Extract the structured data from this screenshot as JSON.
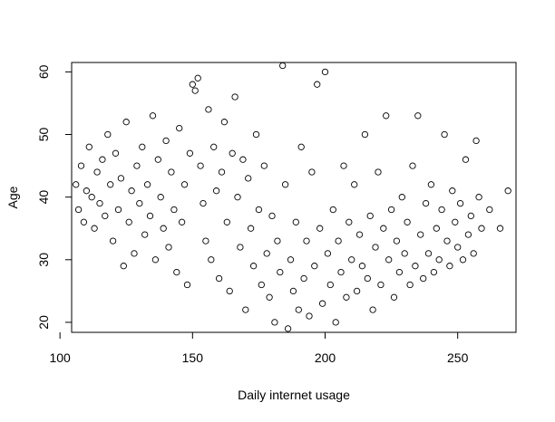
{
  "chart_data": {
    "type": "scatter",
    "title": "",
    "xlabel": "Daily internet usage",
    "ylabel": "Age",
    "xlim": [
      104.4,
      272.0
    ],
    "ylim": [
      18.4,
      61.5
    ],
    "xticks": [
      100,
      150,
      200,
      250
    ],
    "yticks": [
      20,
      30,
      40,
      50,
      60
    ],
    "marker": "open-circle",
    "grid": false,
    "series": [
      {
        "points": [
          [
            106,
            42
          ],
          [
            107,
            38
          ],
          [
            108,
            45
          ],
          [
            109,
            36
          ],
          [
            110,
            41
          ],
          [
            111,
            48
          ],
          [
            112,
            40
          ],
          [
            113,
            35
          ],
          [
            114,
            44
          ],
          [
            115,
            39
          ],
          [
            116,
            46
          ],
          [
            117,
            37
          ],
          [
            118,
            50
          ],
          [
            119,
            42
          ],
          [
            120,
            33
          ],
          [
            121,
            47
          ],
          [
            122,
            38
          ],
          [
            123,
            43
          ],
          [
            124,
            29
          ],
          [
            125,
            52
          ],
          [
            126,
            36
          ],
          [
            127,
            41
          ],
          [
            128,
            31
          ],
          [
            129,
            45
          ],
          [
            130,
            39
          ],
          [
            131,
            48
          ],
          [
            132,
            34
          ],
          [
            133,
            42
          ],
          [
            134,
            37
          ],
          [
            135,
            53
          ],
          [
            136,
            30
          ],
          [
            137,
            46
          ],
          [
            138,
            40
          ],
          [
            139,
            35
          ],
          [
            140,
            49
          ],
          [
            141,
            32
          ],
          [
            142,
            44
          ],
          [
            143,
            38
          ],
          [
            144,
            28
          ],
          [
            145,
            51
          ],
          [
            146,
            36
          ],
          [
            147,
            42
          ],
          [
            148,
            26
          ],
          [
            149,
            47
          ],
          [
            150,
            58
          ],
          [
            151,
            57
          ],
          [
            152,
            59
          ],
          [
            153,
            45
          ],
          [
            154,
            39
          ],
          [
            155,
            33
          ],
          [
            156,
            54
          ],
          [
            157,
            30
          ],
          [
            158,
            48
          ],
          [
            159,
            41
          ],
          [
            160,
            27
          ],
          [
            161,
            44
          ],
          [
            162,
            52
          ],
          [
            163,
            36
          ],
          [
            164,
            25
          ],
          [
            165,
            47
          ],
          [
            166,
            56
          ],
          [
            167,
            40
          ],
          [
            168,
            32
          ],
          [
            169,
            46
          ],
          [
            170,
            22
          ],
          [
            171,
            43
          ],
          [
            172,
            35
          ],
          [
            173,
            29
          ],
          [
            174,
            50
          ],
          [
            175,
            38
          ],
          [
            176,
            26
          ],
          [
            177,
            45
          ],
          [
            178,
            31
          ],
          [
            179,
            24
          ],
          [
            180,
            37
          ],
          [
            181,
            20
          ],
          [
            182,
            33
          ],
          [
            183,
            28
          ],
          [
            184,
            61
          ],
          [
            185,
            42
          ],
          [
            186,
            19
          ],
          [
            187,
            30
          ],
          [
            188,
            25
          ],
          [
            189,
            36
          ],
          [
            190,
            22
          ],
          [
            191,
            48
          ],
          [
            192,
            27
          ],
          [
            193,
            33
          ],
          [
            194,
            21
          ],
          [
            195,
            44
          ],
          [
            196,
            29
          ],
          [
            197,
            58
          ],
          [
            198,
            35
          ],
          [
            199,
            23
          ],
          [
            200,
            60
          ],
          [
            201,
            31
          ],
          [
            202,
            26
          ],
          [
            203,
            38
          ],
          [
            204,
            20
          ],
          [
            205,
            33
          ],
          [
            206,
            28
          ],
          [
            207,
            45
          ],
          [
            208,
            24
          ],
          [
            209,
            36
          ],
          [
            210,
            30
          ],
          [
            211,
            42
          ],
          [
            212,
            25
          ],
          [
            213,
            34
          ],
          [
            214,
            29
          ],
          [
            215,
            50
          ],
          [
            216,
            27
          ],
          [
            217,
            37
          ],
          [
            218,
            22
          ],
          [
            219,
            32
          ],
          [
            220,
            44
          ],
          [
            221,
            26
          ],
          [
            222,
            35
          ],
          [
            223,
            53
          ],
          [
            224,
            30
          ],
          [
            225,
            38
          ],
          [
            226,
            24
          ],
          [
            227,
            33
          ],
          [
            228,
            28
          ],
          [
            229,
            40
          ],
          [
            230,
            31
          ],
          [
            231,
            36
          ],
          [
            232,
            26
          ],
          [
            233,
            45
          ],
          [
            234,
            29
          ],
          [
            235,
            53
          ],
          [
            236,
            34
          ],
          [
            237,
            27
          ],
          [
            238,
            39
          ],
          [
            239,
            31
          ],
          [
            240,
            42
          ],
          [
            241,
            28
          ],
          [
            242,
            35
          ],
          [
            243,
            30
          ],
          [
            244,
            38
          ],
          [
            245,
            50
          ],
          [
            246,
            33
          ],
          [
            247,
            29
          ],
          [
            248,
            41
          ],
          [
            249,
            36
          ],
          [
            250,
            32
          ],
          [
            251,
            39
          ],
          [
            252,
            30
          ],
          [
            253,
            46
          ],
          [
            254,
            34
          ],
          [
            255,
            37
          ],
          [
            256,
            31
          ],
          [
            257,
            49
          ],
          [
            258,
            40
          ],
          [
            259,
            35
          ],
          [
            262,
            38
          ],
          [
            266,
            35
          ],
          [
            269,
            41
          ]
        ]
      }
    ]
  }
}
